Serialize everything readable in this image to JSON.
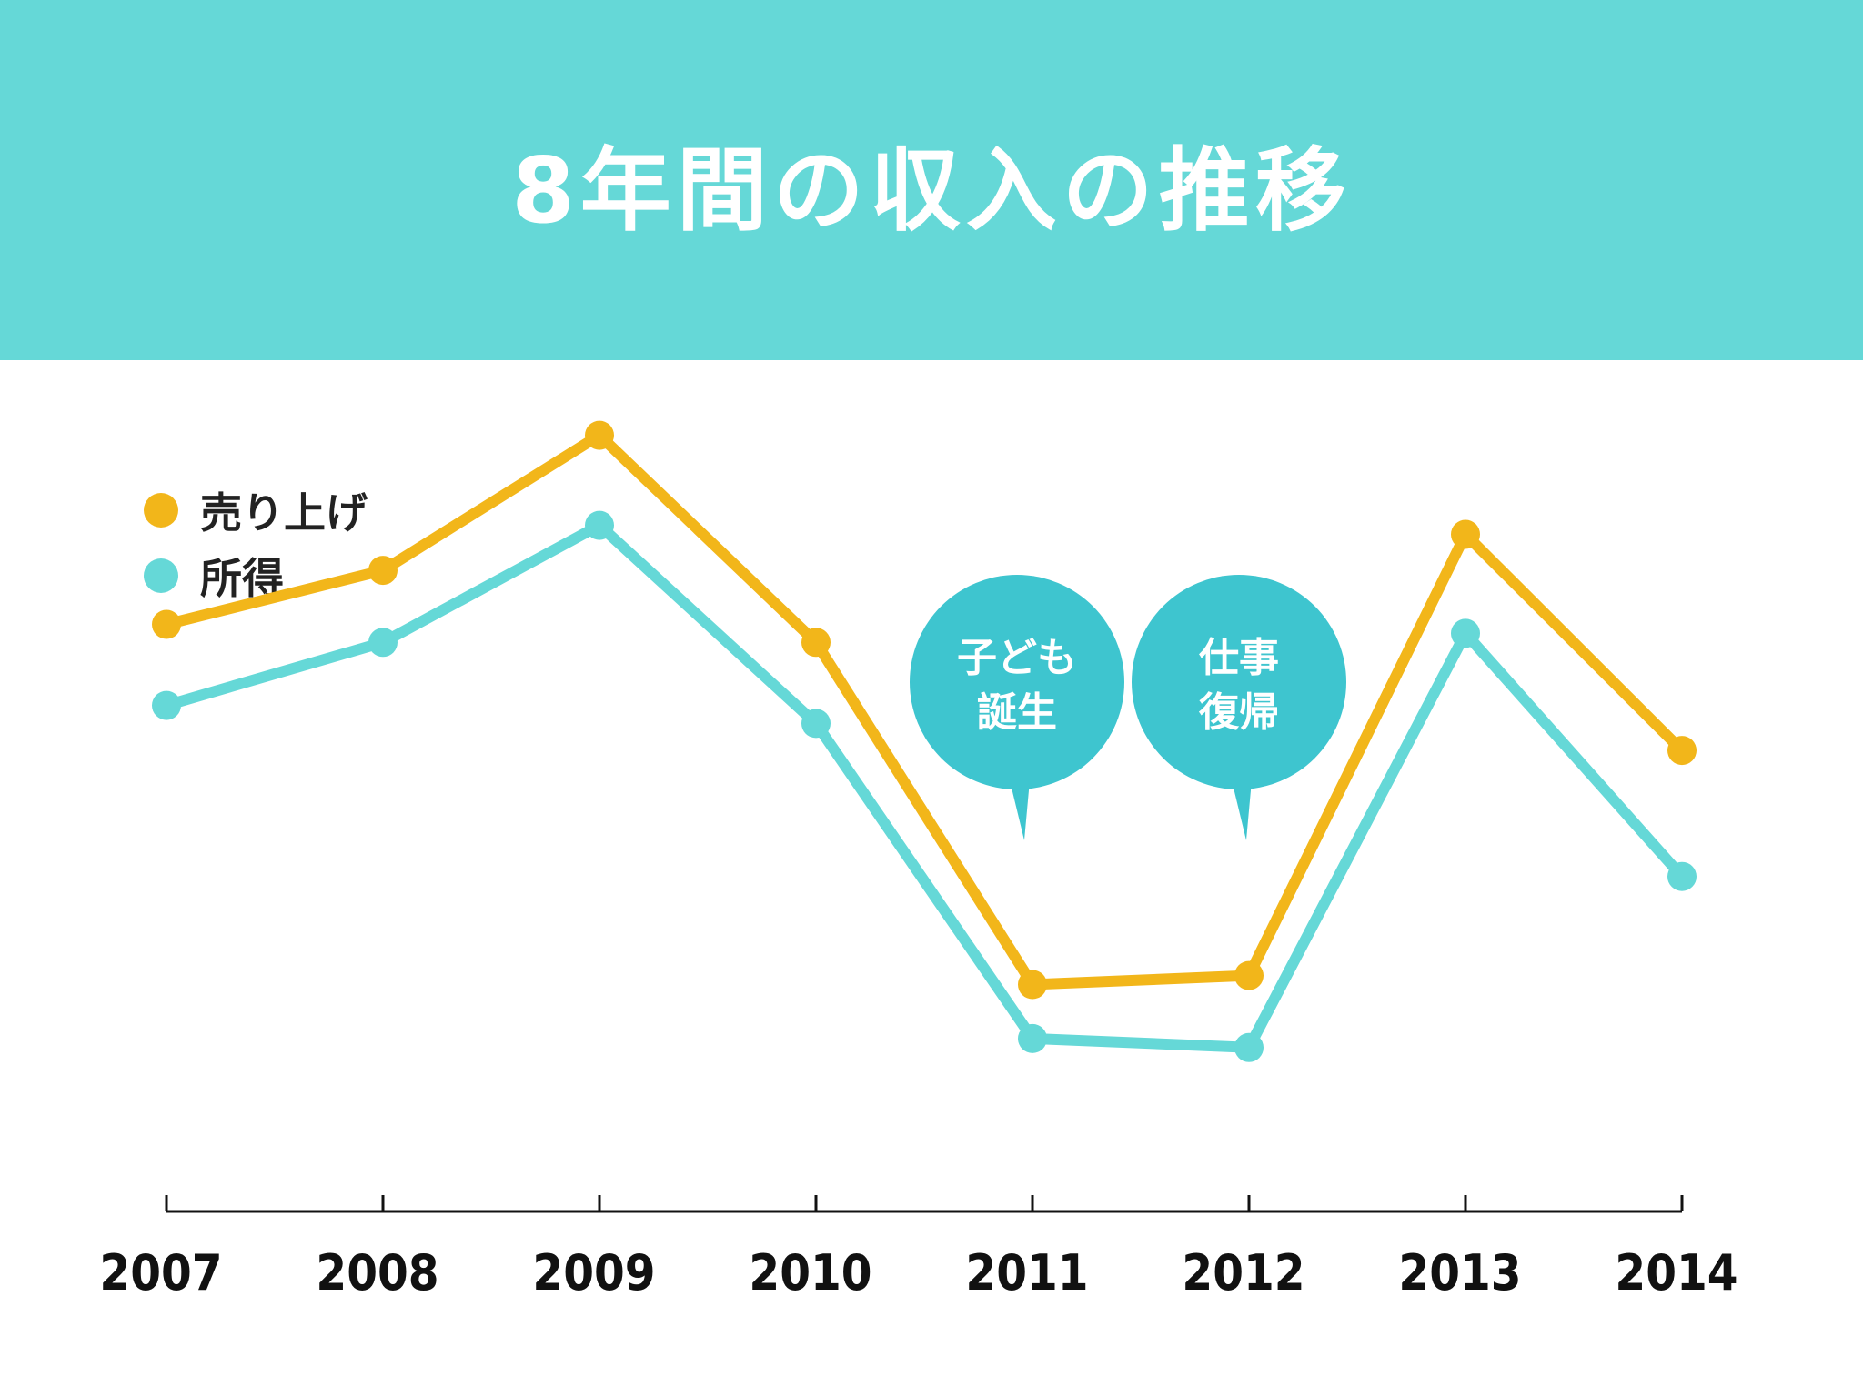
{
  "title": "8年間の収入の推移",
  "colors": {
    "header": "#65D8D7",
    "sales": "#F2B61A",
    "income": "#65D8D7",
    "bubble": "#3EC5CF",
    "axis": "#111111"
  },
  "chart_data": {
    "type": "line",
    "categories": [
      "2007",
      "2008",
      "2009",
      "2010",
      "2011",
      "2012",
      "2013",
      "2014"
    ],
    "series": [
      {
        "name": "売り上げ",
        "values": [
          65,
          71,
          86,
          63,
          25,
          26,
          75,
          51
        ]
      },
      {
        "name": "所得",
        "values": [
          56,
          63,
          76,
          54,
          19,
          18,
          64,
          37
        ]
      }
    ],
    "ylim": [
      0,
      100
    ],
    "grid": false,
    "legend_position": "top-left",
    "annotations": [
      {
        "lines": [
          "子ども",
          "誕生"
        ],
        "x_between": [
          "2011",
          "2012"
        ],
        "side": "left"
      },
      {
        "lines": [
          "仕事",
          "復帰"
        ],
        "x_between": [
          "2011",
          "2012"
        ],
        "side": "right"
      }
    ]
  }
}
